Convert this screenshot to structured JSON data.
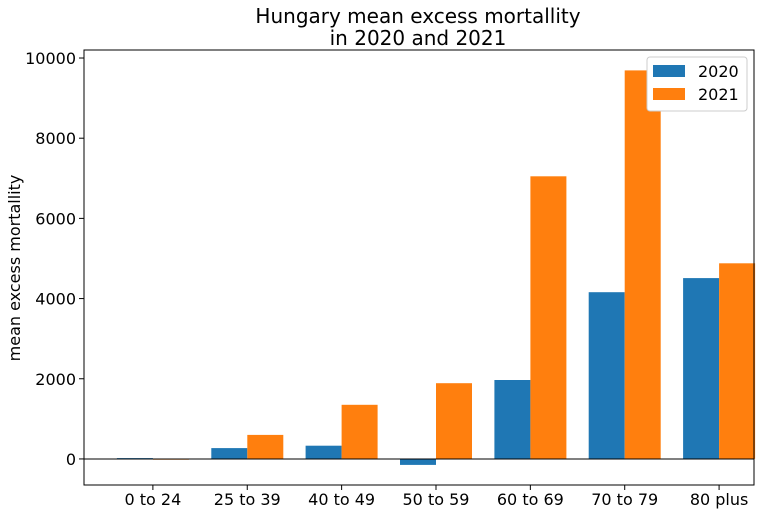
{
  "chart_data": {
    "type": "bar",
    "title_line1": "Hungary mean excess mortallity",
    "title_line2": "in 2020 and 2021",
    "xlabel": "",
    "ylabel": "mean excess mortallity",
    "categories": [
      "0 to 24",
      "25 to 39",
      "40 to 49",
      "50 to 59",
      "60 to 69",
      "70 to 79",
      "80 plus"
    ],
    "series": [
      {
        "name": "2020",
        "color": "#1f77b4",
        "values": [
          20,
          270,
          330,
          -150,
          1970,
          4160,
          4510
        ]
      },
      {
        "name": "2021",
        "color": "#ff7f0e",
        "values": [
          -10,
          600,
          1350,
          1890,
          7050,
          9690,
          4880
        ]
      }
    ],
    "ylim": [
      -650,
      10200
    ],
    "yticks": [
      0,
      2000,
      4000,
      6000,
      8000,
      10000
    ],
    "zero_line": true,
    "grid": false,
    "legend_position": "top-right"
  }
}
